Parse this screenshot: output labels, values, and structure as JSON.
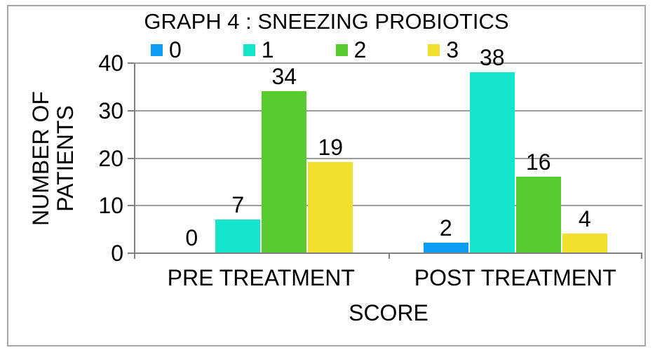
{
  "window": {
    "background_color": "#ffffff",
    "frame_border_color": "#a6a6a6"
  },
  "chart_data": {
    "type": "bar",
    "title": "GRAPH 4 : SNEEZING PROBIOTICS",
    "xlabel": "SCORE",
    "ylabel": "NUMBER OF PATIENTS",
    "ylabel_lines": [
      "NUMBER OF",
      "PATIENTS"
    ],
    "categories": [
      "PRE TREATMENT",
      "POST TREATMENT"
    ],
    "series": [
      {
        "name": "0",
        "color": "#0c9df2",
        "values": [
          0,
          2
        ]
      },
      {
        "name": "1",
        "color": "#15e5cd",
        "values": [
          7,
          38
        ]
      },
      {
        "name": "2",
        "color": "#58cb2f",
        "values": [
          34,
          16
        ]
      },
      {
        "name": "3",
        "color": "#f2df30",
        "values": [
          19,
          4
        ]
      }
    ],
    "data_labels": [
      {
        "category": "PRE TREATMENT",
        "labels": [
          "0",
          "7",
          "34",
          "19"
        ]
      },
      {
        "category": "POST TREATMENT",
        "labels": [
          "2",
          "38",
          "16",
          "4"
        ]
      }
    ],
    "ylim": [
      0,
      40
    ],
    "yticks": [
      "0",
      "10",
      "20",
      "30",
      "40"
    ],
    "grid": true,
    "legend_position": "top",
    "axis_color": "#808080",
    "gridline_color": "#9e9e9e",
    "text_color": "#000000"
  }
}
